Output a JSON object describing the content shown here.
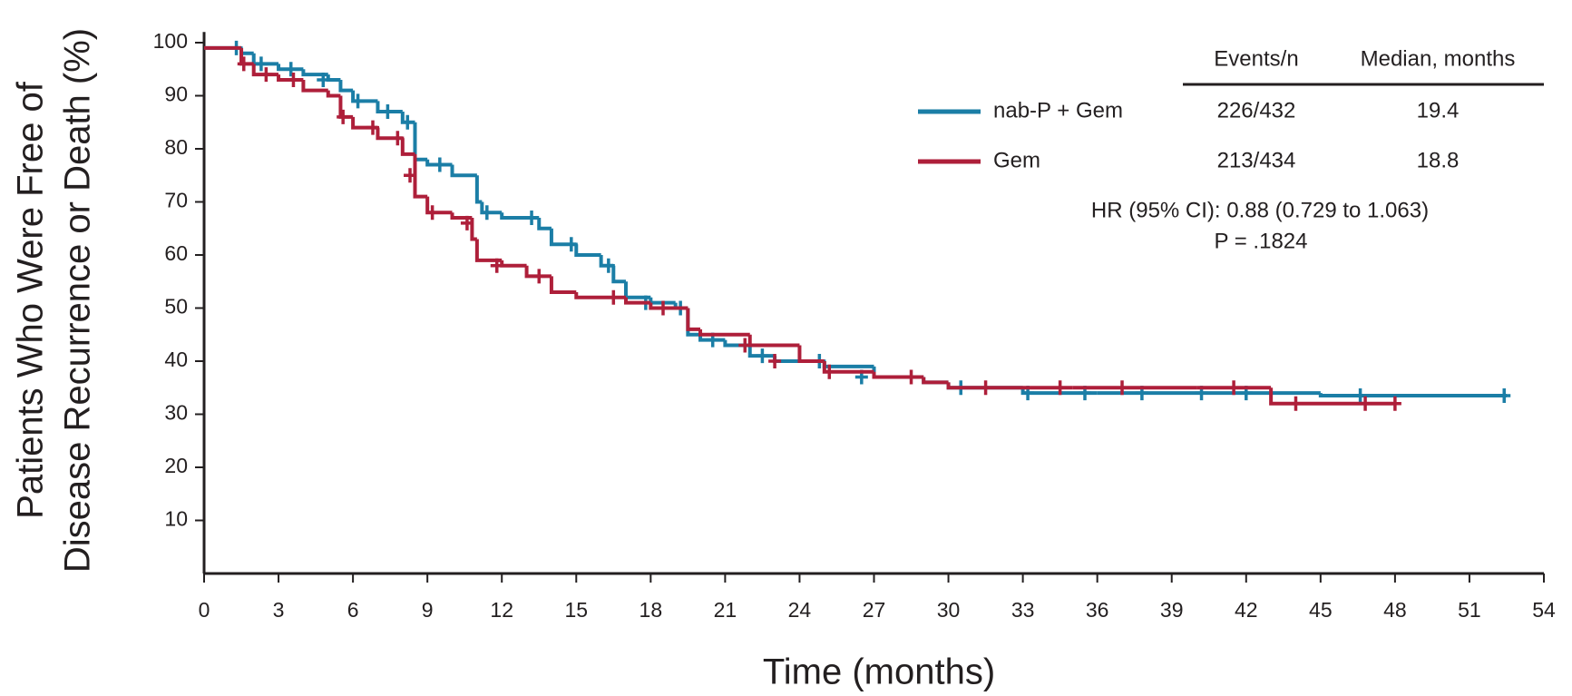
{
  "chart_data": {
    "type": "km",
    "x_label": "Time (months)",
    "y_label": [
      "Patients Who Were Free of",
      "Disease Recurrence or Death (%)"
    ],
    "xlim": [
      0,
      54
    ],
    "ylim": [
      0,
      102
    ],
    "xticks": [
      0,
      3,
      6,
      9,
      12,
      15,
      18,
      21,
      24,
      27,
      30,
      33,
      36,
      39,
      42,
      45,
      48,
      51,
      54
    ],
    "yticks": [
      10,
      20,
      30,
      40,
      50,
      60,
      70,
      80,
      90,
      100
    ],
    "table_headers": [
      "Events/n",
      "Median, months"
    ],
    "series": [
      {
        "name": "nab-P + Gem",
        "color": "#1b7ea6",
        "events": "226/432",
        "median": "19.4",
        "x": [
          0,
          1.5,
          2,
          3,
          4,
          5,
          5.5,
          6,
          7,
          8,
          8.5,
          9,
          10,
          11,
          11.2,
          12,
          13.5,
          14,
          15,
          16,
          16.5,
          17,
          18,
          19,
          19.5,
          20,
          21,
          22,
          23,
          25,
          27,
          29,
          30,
          33,
          36,
          45,
          52.5
        ],
        "values": [
          99,
          98,
          96,
          95,
          94,
          93,
          91,
          89,
          87,
          85,
          78,
          77,
          75,
          70,
          68,
          67,
          65,
          62,
          60,
          58,
          55,
          52,
          51,
          50,
          45,
          44,
          43,
          41,
          40,
          39,
          37,
          36,
          35,
          34,
          34,
          33.5,
          33.5
        ],
        "censored_x": [
          1.3,
          2.3,
          3.5,
          4.8,
          6.2,
          7.4,
          8.2,
          9.5,
          11.4,
          13.2,
          14.8,
          16.3,
          17.8,
          19.2,
          20.5,
          22.5,
          24.8,
          26.5,
          30.5,
          33.2,
          35.5,
          37.8,
          40.2,
          42,
          46.6,
          52.4
        ],
        "censored_y": [
          99,
          96,
          95,
          93,
          89,
          87,
          85,
          77,
          68,
          67,
          62,
          58,
          51,
          50,
          44,
          41,
          40,
          37,
          35,
          34,
          34,
          34,
          34,
          34,
          33.5,
          33.5
        ]
      },
      {
        "name": "Gem",
        "color": "#ae1f3a",
        "events": "213/434",
        "median": "18.8",
        "x": [
          0,
          1.5,
          2,
          3,
          4,
          5,
          5.5,
          6,
          7,
          8,
          8.5,
          9,
          10,
          10.8,
          11,
          12,
          13,
          14,
          15,
          17,
          18,
          19.5,
          20,
          22,
          24,
          25,
          27,
          29,
          30,
          35,
          40,
          43,
          48
        ],
        "values": [
          99,
          96,
          94,
          93,
          91,
          90,
          86,
          84,
          82,
          79,
          71,
          68,
          67,
          63,
          59,
          58,
          56,
          53,
          52,
          51,
          50,
          46,
          45,
          43,
          40,
          38,
          37,
          36,
          35,
          35,
          35,
          32,
          32
        ],
        "censored_x": [
          1.6,
          2.5,
          3.6,
          5.6,
          6.8,
          7.8,
          8.3,
          9.2,
          10.6,
          11.8,
          13.5,
          16.5,
          18.5,
          21.8,
          23,
          25.2,
          28.5,
          31.5,
          34.5,
          37,
          41.5,
          44,
          46.8,
          48
        ],
        "censored_y": [
          96,
          94,
          93,
          86,
          84,
          82,
          75,
          68,
          66,
          58,
          56,
          52,
          50,
          43,
          40,
          38,
          37,
          35,
          35,
          35,
          35,
          32,
          32,
          32
        ]
      }
    ],
    "annotations": [
      "HR (95% CI): 0.88 (0.729 to 1.063)",
      "P = .1824"
    ]
  }
}
